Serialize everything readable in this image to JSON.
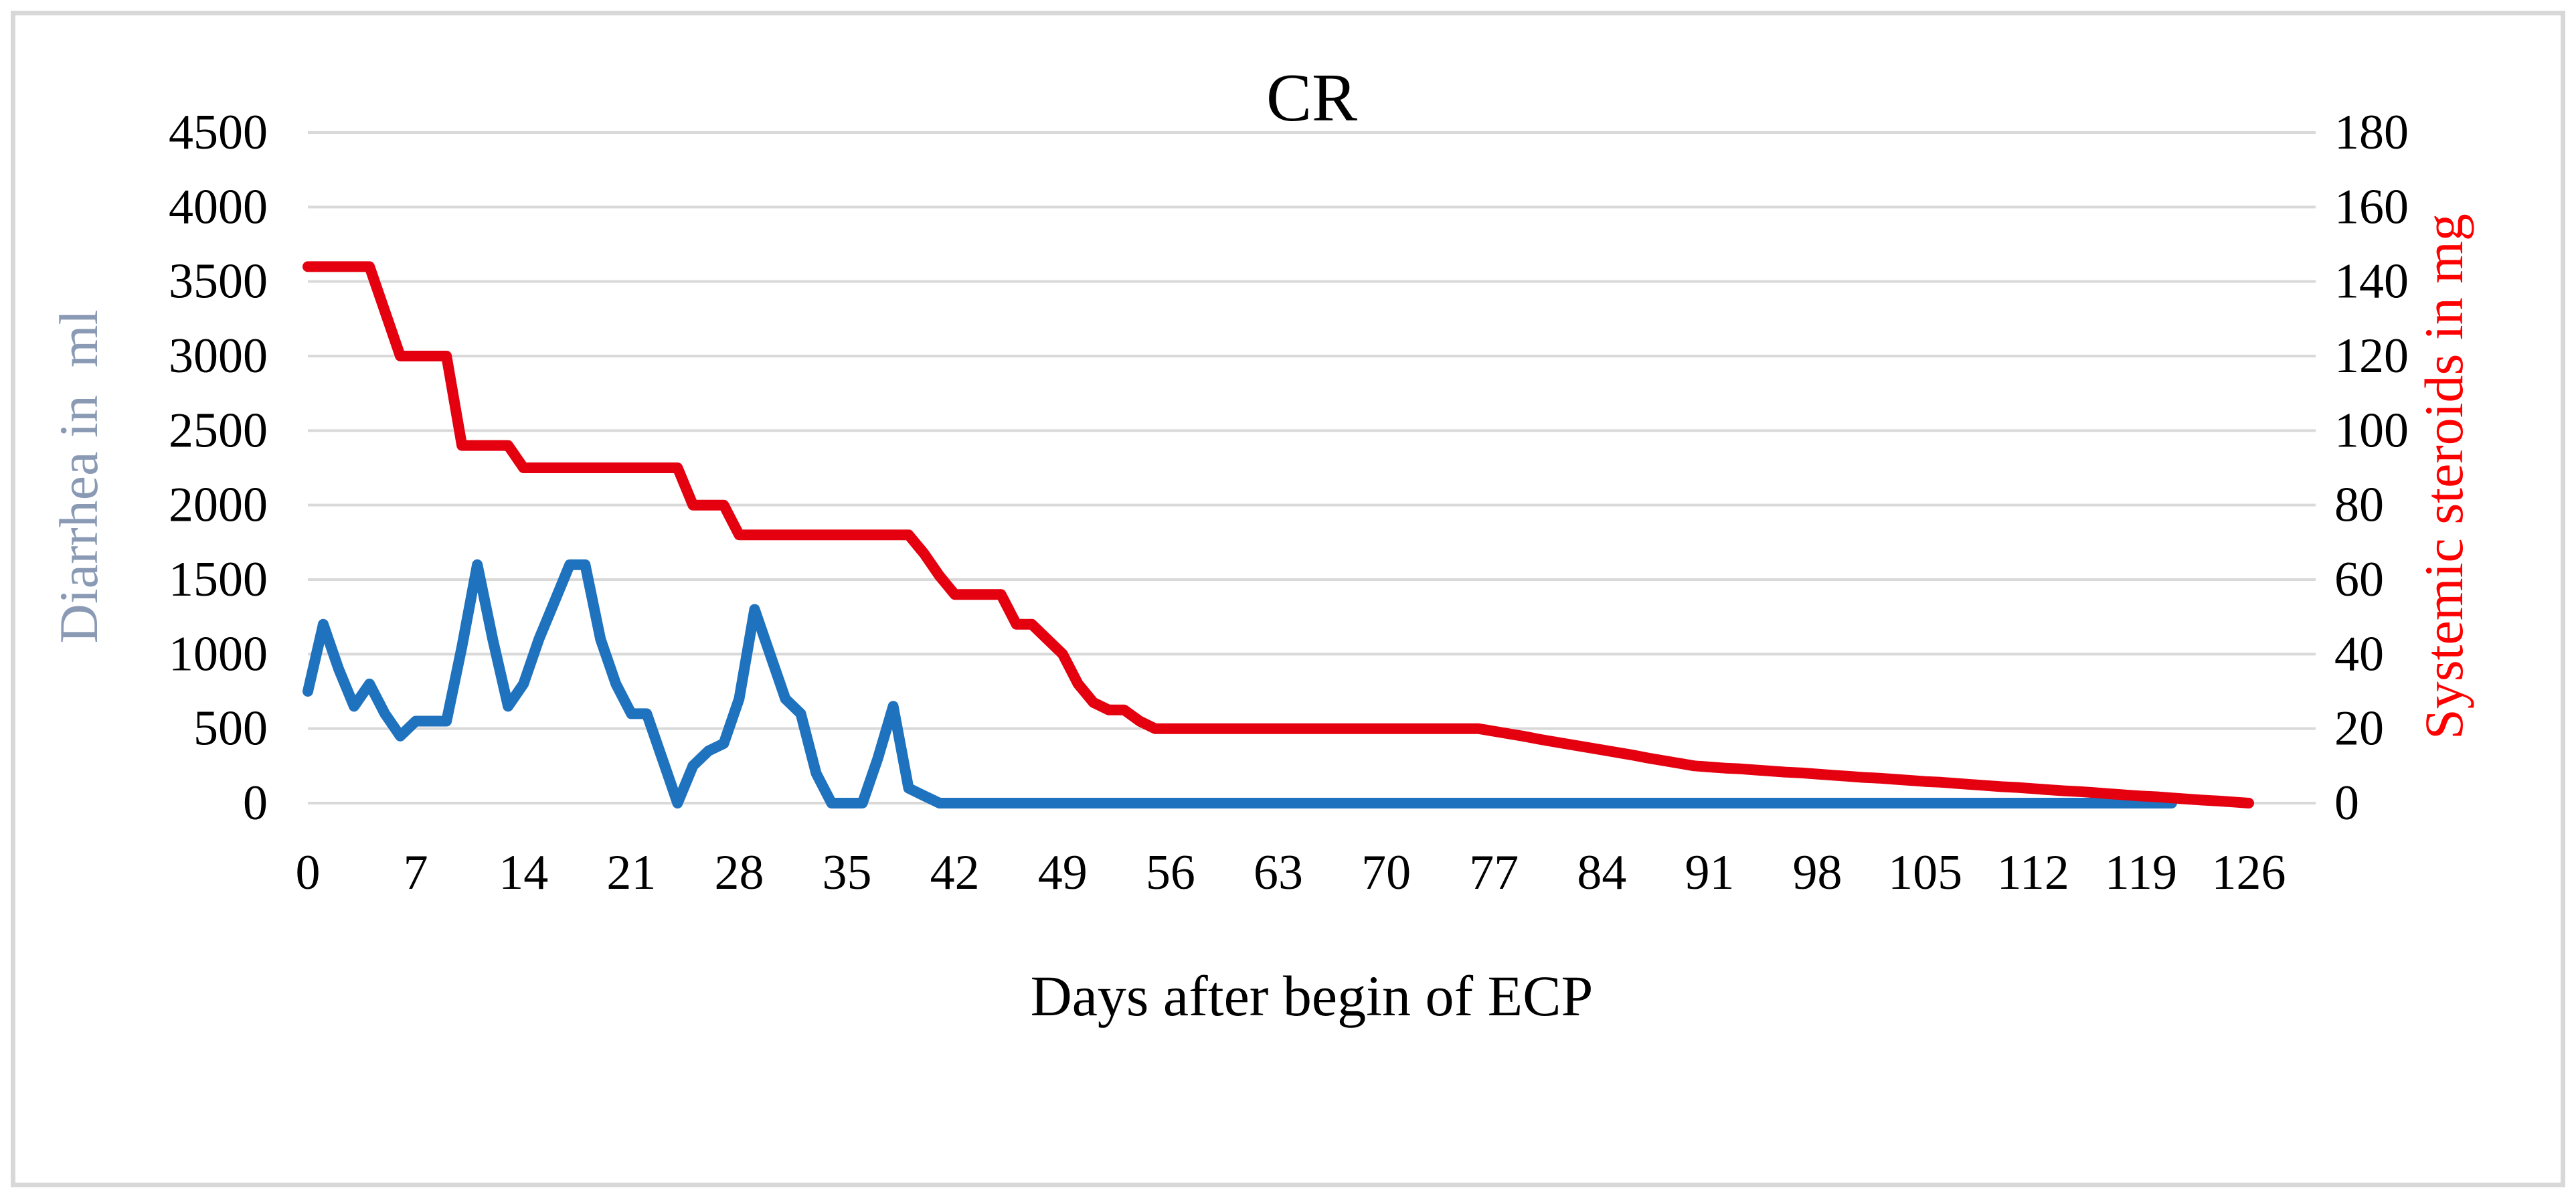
{
  "figure": {
    "border_color": "#D8D8D8",
    "background": "#FFFFFF"
  },
  "chart_data": {
    "type": "line",
    "title": "CR",
    "xlabel": "Days after begin of ECP",
    "ylabel_left": "Diarrhea in  ml",
    "ylabel_right": "Systemic steroids in mg",
    "grid": true,
    "legend": "none",
    "gridline_color": "#D9D9D9",
    "tick_label_color": "#000000",
    "ylabel_left_color": "#8A9AB5",
    "ylabel_right_color": "#FF0000",
    "x_ticks": [
      0,
      7,
      14,
      21,
      28,
      35,
      42,
      49,
      56,
      63,
      70,
      77,
      84,
      91,
      98,
      105,
      112,
      119,
      126
    ],
    "x_min": 0,
    "x_max": 130,
    "x_step": 1,
    "x_count": 127,
    "y_left": {
      "min": 0,
      "max": 4500,
      "step": 500,
      "ticks": [
        0,
        500,
        1000,
        1500,
        2000,
        2500,
        3000,
        3500,
        4000,
        4500
      ]
    },
    "y_right": {
      "min": 0,
      "max": 180,
      "step": 20,
      "ticks": [
        0,
        20,
        40,
        60,
        80,
        100,
        120,
        140,
        160,
        180
      ]
    },
    "series": [
      {
        "name": "Diarrhea in ml",
        "axis": "left",
        "color": "#1F72BE",
        "values": [
          750,
          1200,
          900,
          650,
          800,
          600,
          450,
          550,
          550,
          550,
          1050,
          1600,
          1100,
          650,
          800,
          1100,
          1350,
          1600,
          1600,
          1100,
          800,
          600,
          600,
          300,
          0,
          250,
          350,
          400,
          700,
          1300,
          1000,
          700,
          600,
          200,
          0,
          0,
          0,
          300,
          650,
          100,
          50,
          0,
          0,
          0,
          0,
          0,
          0,
          0,
          0,
          0,
          0,
          0,
          0,
          0,
          0,
          0,
          0,
          0,
          0,
          0,
          0,
          0,
          0,
          0,
          0,
          0,
          0,
          0,
          0,
          0,
          0,
          0,
          0,
          0,
          0,
          0,
          0,
          0,
          0,
          0,
          0,
          0,
          0,
          0,
          0,
          0,
          0,
          0,
          0,
          0,
          0,
          0,
          0,
          0,
          0,
          0,
          0,
          0,
          0,
          0,
          0,
          0,
          0,
          0,
          0,
          0,
          0,
          0,
          0,
          0,
          0,
          0,
          0,
          0,
          0,
          0,
          0,
          0,
          0,
          0,
          0,
          0
        ]
      },
      {
        "name": "Systemic steroids in mg",
        "axis": "right",
        "color": "#E4000F",
        "values": [
          144,
          144,
          144,
          144,
          144,
          132,
          120,
          120,
          120,
          120,
          96,
          96,
          96,
          96,
          90,
          90,
          90,
          90,
          90,
          90,
          90,
          90,
          90,
          90,
          90,
          80,
          80,
          80,
          72,
          72,
          72,
          72,
          72,
          72,
          72,
          72,
          72,
          72,
          72,
          72,
          67,
          61,
          56,
          56,
          56,
          56,
          48,
          48,
          44,
          40,
          32,
          27,
          25,
          25,
          22,
          20,
          20,
          20,
          20,
          20,
          20,
          20,
          20,
          20,
          20,
          20,
          20,
          20,
          20,
          20,
          20,
          20,
          20,
          20,
          20,
          20,
          20,
          19.3,
          18.6,
          17.9,
          17.1,
          16.4,
          15.7,
          15,
          14.3,
          13.6,
          12.9,
          12.1,
          11.4,
          10.7,
          10,
          9.7,
          9.4,
          9.2,
          8.9,
          8.6,
          8.3,
          8.1,
          7.8,
          7.5,
          7.2,
          6.9,
          6.7,
          6.4,
          6.1,
          5.8,
          5.6,
          5.3,
          5,
          4.7,
          4.4,
          4.2,
          3.9,
          3.6,
          3.3,
          3.1,
          2.8,
          2.5,
          2.2,
          1.9,
          1.7,
          1.4,
          1.1,
          0.8,
          0.6,
          0.3,
          0
        ]
      }
    ]
  }
}
